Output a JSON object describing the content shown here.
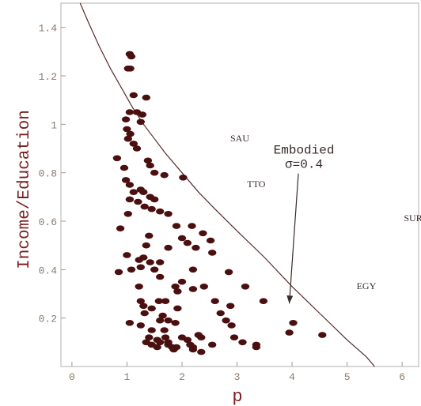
{
  "chart_data": {
    "type": "scatter",
    "xlabel": "p",
    "ylabel": "Income/Education",
    "xlim": [
      -0.2,
      6.3
    ],
    "ylim": [
      0.0,
      1.5
    ],
    "x_ticks": [
      "0",
      "1",
      "2",
      "3",
      "4",
      "5",
      "6"
    ],
    "y_ticks": [
      "0.2",
      "0.4",
      "0.6",
      "0.8",
      "1",
      "1.2",
      "1.4"
    ],
    "point_color": "#4a0f0f",
    "curve_color": "#5a2a2a",
    "curve": {
      "type": "line",
      "points": [
        [
          0.15,
          1.5
        ],
        [
          0.3,
          1.42
        ],
        [
          0.5,
          1.32
        ],
        [
          0.7,
          1.23
        ],
        [
          0.9,
          1.15
        ],
        [
          1.1,
          1.07
        ],
        [
          1.3,
          1.0
        ],
        [
          1.5,
          0.94
        ],
        [
          1.7,
          0.88
        ],
        [
          2.0,
          0.8
        ],
        [
          2.3,
          0.72
        ],
        [
          2.6,
          0.65
        ],
        [
          3.0,
          0.56
        ],
        [
          3.5,
          0.45
        ],
        [
          4.0,
          0.33
        ],
        [
          4.5,
          0.22
        ],
        [
          5.0,
          0.11
        ],
        [
          5.35,
          0.04
        ],
        [
          5.5,
          0.0
        ]
      ]
    },
    "annotation": {
      "line1": "Embodied",
      "line2": "σ=0.4",
      "text_at": [
        4.0,
        0.8
      ],
      "arrow_to": [
        3.95,
        0.26
      ]
    },
    "country_labels": [
      {
        "text": "SAU",
        "x": 3.05,
        "y": 0.93
      },
      {
        "text": "TTO",
        "x": 3.35,
        "y": 0.74
      },
      {
        "text": "SUR",
        "x": 6.2,
        "y": 0.6
      },
      {
        "text": "EGY",
        "x": 5.35,
        "y": 0.32
      }
    ],
    "points": [
      [
        1.05,
        1.29
      ],
      [
        1.08,
        1.28
      ],
      [
        1.02,
        1.23
      ],
      [
        1.06,
        1.23
      ],
      [
        1.12,
        1.12
      ],
      [
        1.35,
        1.11
      ],
      [
        1.05,
        1.05
      ],
      [
        1.18,
        1.05
      ],
      [
        1.28,
        1.04
      ],
      [
        0.98,
        1.02
      ],
      [
        1.25,
        1.01
      ],
      [
        1.0,
        0.98
      ],
      [
        1.06,
        0.96
      ],
      [
        1.02,
        0.94
      ],
      [
        1.12,
        0.92
      ],
      [
        1.18,
        0.9
      ],
      [
        1.38,
        0.85
      ],
      [
        1.42,
        0.83
      ],
      [
        1.5,
        0.8
      ],
      [
        1.68,
        0.79
      ],
      [
        2.02,
        0.78
      ],
      [
        0.82,
        0.86
      ],
      [
        0.95,
        0.82
      ],
      [
        0.98,
        0.77
      ],
      [
        1.05,
        0.75
      ],
      [
        1.12,
        0.72
      ],
      [
        1.25,
        0.73
      ],
      [
        1.3,
        0.72
      ],
      [
        1.05,
        0.69
      ],
      [
        1.2,
        0.68
      ],
      [
        1.42,
        0.7
      ],
      [
        1.5,
        0.69
      ],
      [
        1.32,
        0.66
      ],
      [
        1.45,
        0.65
      ],
      [
        1.6,
        0.64
      ],
      [
        1.75,
        0.63
      ],
      [
        1.02,
        0.63
      ],
      [
        0.88,
        0.57
      ],
      [
        1.9,
        0.58
      ],
      [
        2.18,
        0.58
      ],
      [
        2.38,
        0.55
      ],
      [
        2.0,
        0.53
      ],
      [
        2.1,
        0.51
      ],
      [
        1.4,
        0.54
      ],
      [
        2.52,
        0.52
      ],
      [
        2.25,
        0.49
      ],
      [
        1.75,
        0.49
      ],
      [
        1.35,
        0.5
      ],
      [
        2.55,
        0.47
      ],
      [
        1.0,
        0.46
      ],
      [
        1.3,
        0.45
      ],
      [
        1.22,
        0.44
      ],
      [
        1.42,
        0.43
      ],
      [
        1.6,
        0.43
      ],
      [
        1.25,
        0.41
      ],
      [
        1.5,
        0.4
      ],
      [
        1.08,
        0.4
      ],
      [
        0.85,
        0.39
      ],
      [
        2.2,
        0.4
      ],
      [
        2.85,
        0.39
      ],
      [
        1.6,
        0.37
      ],
      [
        2.0,
        0.35
      ],
      [
        2.4,
        0.33
      ],
      [
        1.22,
        0.33
      ],
      [
        1.88,
        0.33
      ],
      [
        1.92,
        0.31
      ],
      [
        3.15,
        0.33
      ],
      [
        2.2,
        0.32
      ],
      [
        1.7,
        0.27
      ],
      [
        1.58,
        0.27
      ],
      [
        1.25,
        0.27
      ],
      [
        1.3,
        0.25
      ],
      [
        2.6,
        0.27
      ],
      [
        2.88,
        0.25
      ],
      [
        3.48,
        0.27
      ],
      [
        1.45,
        0.24
      ],
      [
        1.92,
        0.24
      ],
      [
        2.7,
        0.22
      ],
      [
        1.32,
        0.22
      ],
      [
        1.65,
        0.21
      ],
      [
        2.8,
        0.19
      ],
      [
        1.05,
        0.18
      ],
      [
        1.25,
        0.17
      ],
      [
        1.6,
        0.19
      ],
      [
        1.75,
        0.19
      ],
      [
        1.88,
        0.18
      ],
      [
        2.9,
        0.17
      ],
      [
        4.02,
        0.18
      ],
      [
        3.95,
        0.14
      ],
      [
        1.45,
        0.15
      ],
      [
        1.68,
        0.15
      ],
      [
        2.3,
        0.13
      ],
      [
        2.35,
        0.12
      ],
      [
        2.95,
        0.12
      ],
      [
        3.1,
        0.1
      ],
      [
        4.55,
        0.13
      ],
      [
        1.4,
        0.12
      ],
      [
        1.55,
        0.11
      ],
      [
        1.35,
        0.1
      ],
      [
        1.7,
        0.12
      ],
      [
        1.75,
        0.1
      ],
      [
        2.0,
        0.12
      ],
      [
        2.1,
        0.11
      ],
      [
        1.45,
        0.09
      ],
      [
        1.6,
        0.1
      ],
      [
        1.75,
        0.09
      ],
      [
        1.82,
        0.08
      ],
      [
        1.9,
        0.08
      ],
      [
        2.15,
        0.09
      ],
      [
        2.2,
        0.07
      ],
      [
        2.35,
        0.06
      ],
      [
        2.55,
        0.09
      ],
      [
        3.35,
        0.09
      ],
      [
        3.35,
        0.08
      ],
      [
        1.55,
        0.08
      ],
      [
        1.85,
        0.07
      ],
      [
        2.2,
        0.08
      ]
    ]
  }
}
